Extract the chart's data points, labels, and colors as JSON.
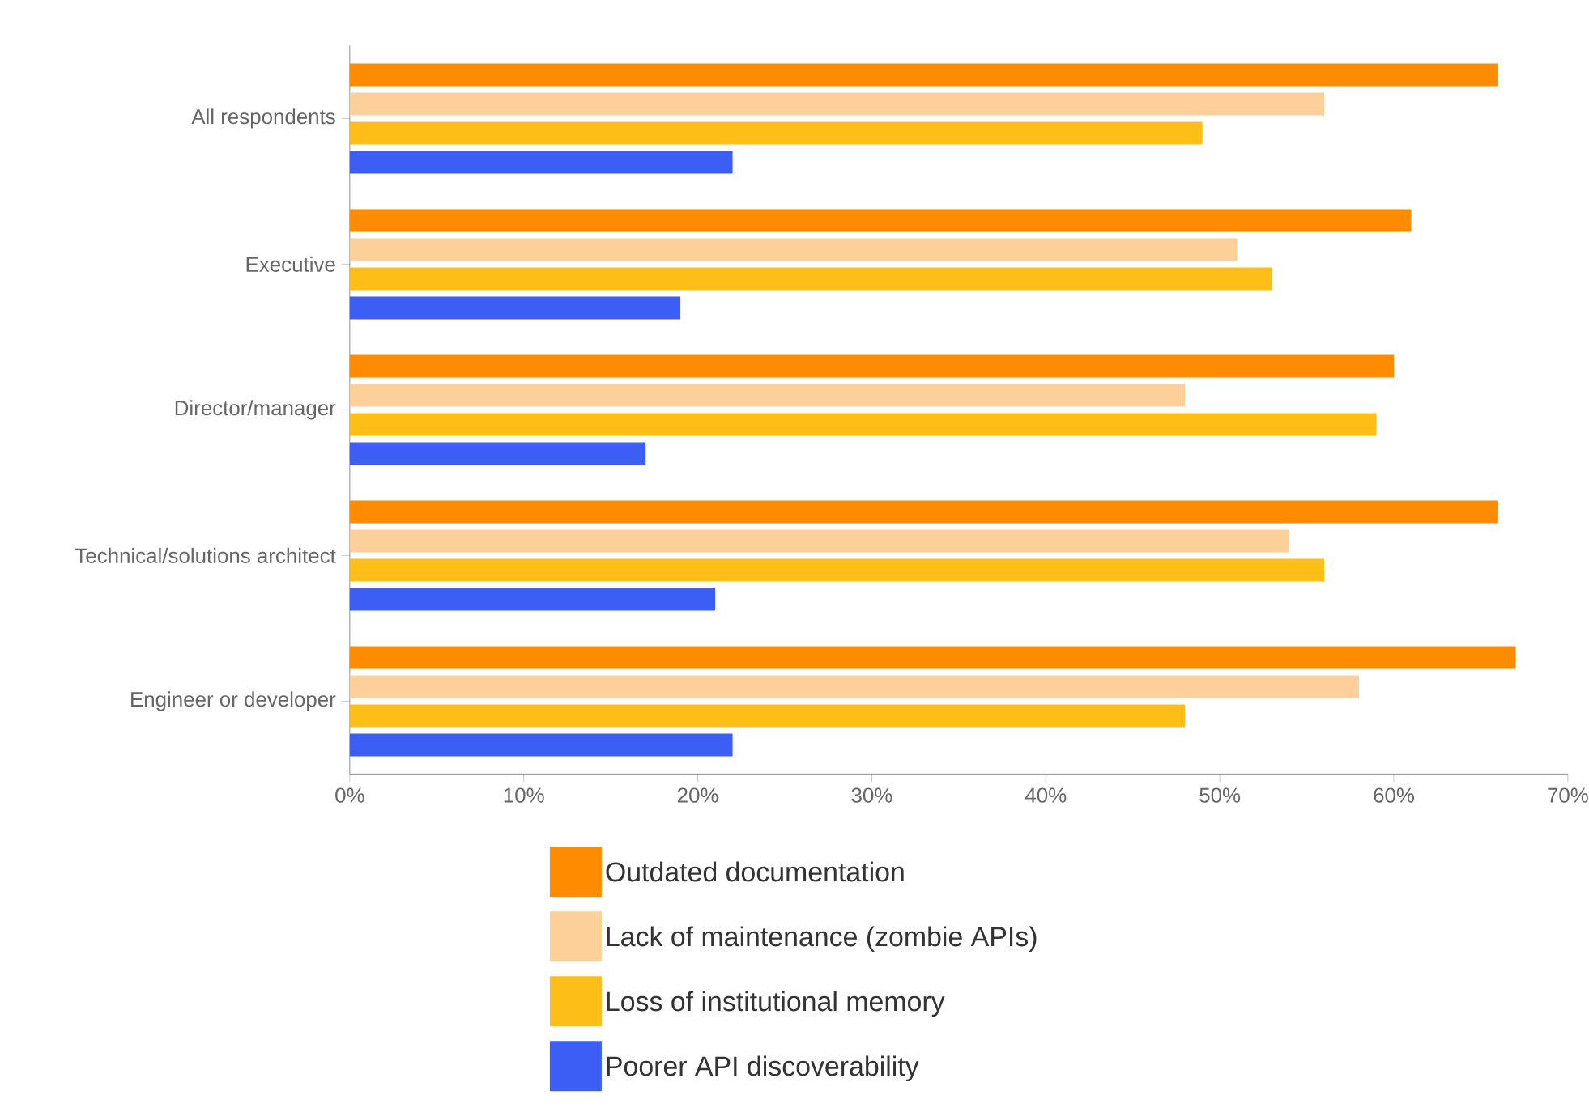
{
  "chart_data": {
    "type": "bar",
    "orientation": "horizontal",
    "categories": [
      "All respondents",
      "Executive",
      "Director/manager",
      "Technical/solutions architect",
      "Engineer or developer"
    ],
    "series": [
      {
        "name": "Outdated documentation",
        "color": "#ff8c00",
        "values": [
          66,
          61,
          60,
          66,
          67
        ]
      },
      {
        "name": "Lack of maintenance (zombie APIs)",
        "color": "#fdd099",
        "values": [
          56,
          51,
          48,
          54,
          58
        ]
      },
      {
        "name": "Loss of institutional memory",
        "color": "#fdbf17",
        "values": [
          49,
          53,
          59,
          56,
          48
        ]
      },
      {
        "name": "Poorer API discoverability",
        "color": "#3d5ef5",
        "values": [
          22,
          19,
          17,
          21,
          22
        ]
      }
    ],
    "xlim": [
      0,
      70
    ],
    "xticks": [
      {
        "value": 0,
        "label": "0%"
      },
      {
        "value": 10,
        "label": "10%"
      },
      {
        "value": 20,
        "label": "20%"
      },
      {
        "value": 30,
        "label": "30%"
      },
      {
        "value": 40,
        "label": "40%"
      },
      {
        "value": 50,
        "label": "50%"
      },
      {
        "value": 60,
        "label": "60%"
      },
      {
        "value": 70,
        "label": "70%"
      }
    ],
    "grid": false,
    "legend": "bottom"
  }
}
